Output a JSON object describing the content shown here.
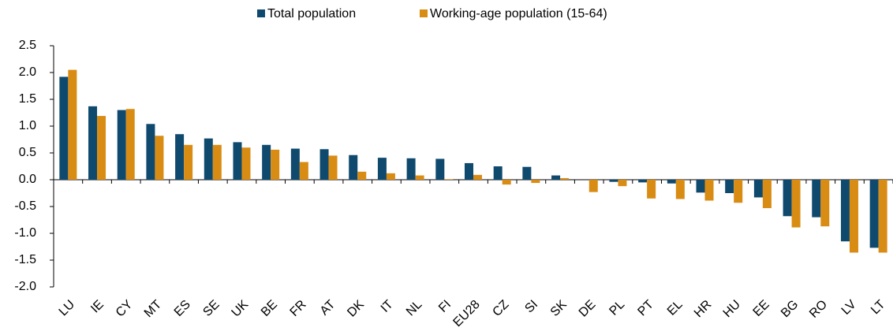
{
  "chart_data": {
    "type": "bar",
    "categories": [
      "LU",
      "IE",
      "CY",
      "MT",
      "ES",
      "SE",
      "UK",
      "BE",
      "FR",
      "AT",
      "DK",
      "IT",
      "NL",
      "FI",
      "EU28",
      "CZ",
      "SI",
      "SK",
      "DE",
      "PL",
      "PT",
      "EL",
      "HR",
      "HU",
      "EE",
      "BG",
      "RO",
      "LV",
      "LT"
    ],
    "series": [
      {
        "name": "Total population",
        "color": "#0f4a6e",
        "values": [
          1.92,
          1.37,
          1.3,
          1.04,
          0.85,
          0.77,
          0.7,
          0.65,
          0.58,
          0.57,
          0.46,
          0.41,
          0.4,
          0.39,
          0.31,
          0.25,
          0.24,
          0.08,
          0.0,
          -0.04,
          -0.05,
          -0.07,
          -0.24,
          -0.25,
          -0.33,
          -0.68,
          -0.7,
          -1.15,
          -1.27
        ]
      },
      {
        "name": "Working-age population (15-64)",
        "color": "#d98c14",
        "values": [
          2.05,
          1.19,
          1.32,
          0.82,
          0.65,
          0.65,
          0.6,
          0.56,
          0.33,
          0.45,
          0.15,
          0.12,
          0.08,
          0.01,
          0.09,
          -0.09,
          -0.06,
          0.03,
          -0.23,
          -0.12,
          -0.35,
          -0.36,
          -0.39,
          -0.43,
          -0.53,
          -0.89,
          -0.87,
          -1.36,
          -1.36
        ]
      }
    ],
    "ylim": [
      -2.0,
      2.5
    ],
    "yticks": [
      {
        "value": -2,
        "label": "-2.0"
      },
      -1.5,
      {
        "value": -1,
        "label": "-1.0"
      },
      -0.5,
      {
        "value": 0,
        "label": "0.0"
      },
      0.5,
      {
        "value": 1,
        "label": "1.0"
      },
      1.5,
      {
        "value": 2,
        "label": "2.0"
      },
      2.5
    ],
    "legend": "top"
  }
}
